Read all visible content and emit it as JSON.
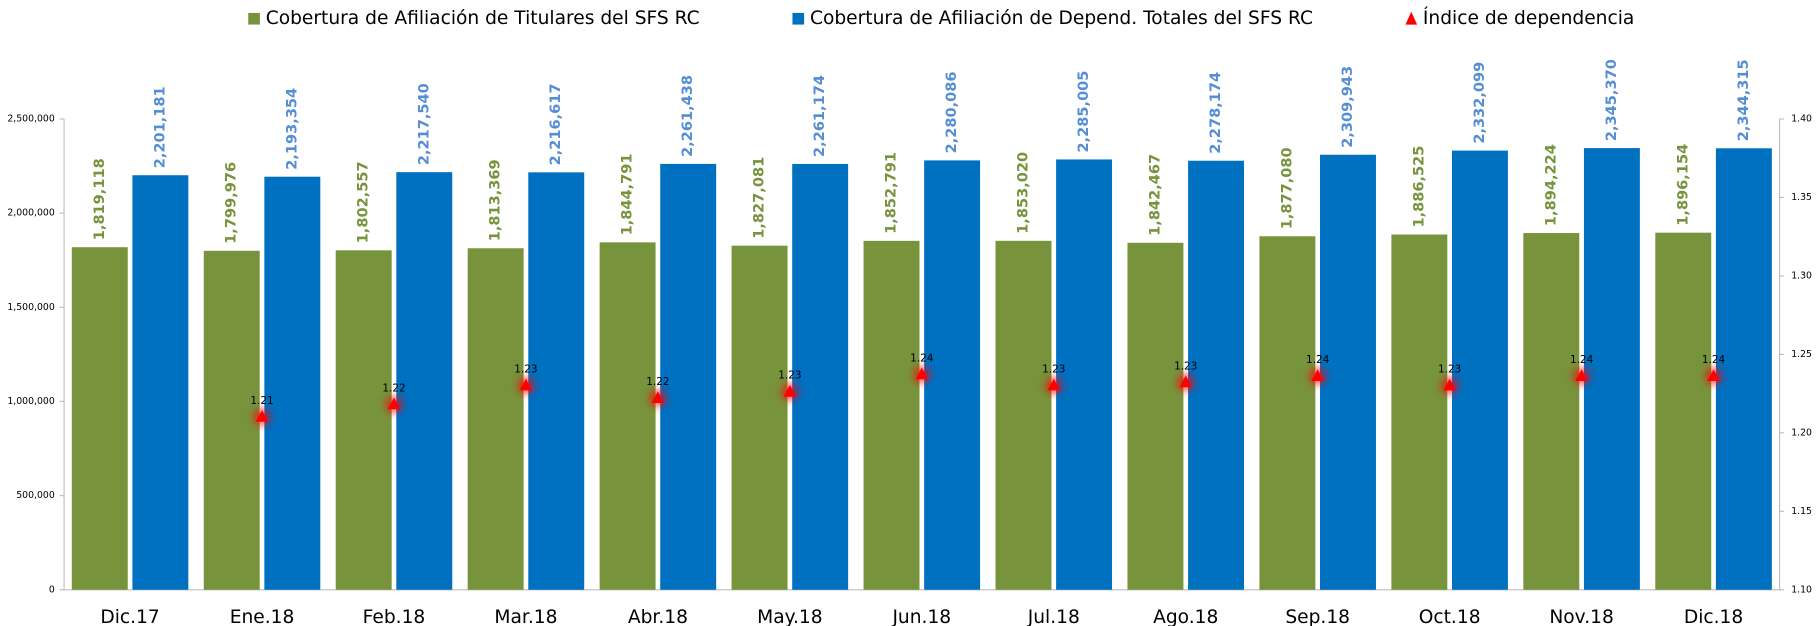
{
  "chart_data": {
    "type": "bar",
    "categories": [
      "Dic.17",
      "Ene.18",
      "Feb.18",
      "Mar.18",
      "Abr.18",
      "May.18",
      "Jun.18",
      "Jul.18",
      "Ago.18",
      "Sep.18",
      "Oct.18",
      "Nov.18",
      "Dic.18"
    ],
    "series": [
      {
        "name": "Cobertura de Afiliación de Titulares del SFS RC",
        "type": "bar",
        "color": "#77933c",
        "label_color": "#77933c",
        "values": [
          1819118,
          1799976,
          1802557,
          1813369,
          1844791,
          1827081,
          1852791,
          1853020,
          1842467,
          1877080,
          1886525,
          1894224,
          1896154
        ],
        "value_labels": [
          "1,819,118",
          "1,799,976",
          "1,802,557",
          "1,813,369",
          "1,844,791",
          "1,827,081",
          "1,852,791",
          "1,853,020",
          "1,842,467",
          "1,877,080",
          "1,886,525",
          "1,894,224",
          "1,896,154"
        ]
      },
      {
        "name": "Cobertura de Afiliación de Depend. Totales del SFS RC",
        "type": "bar",
        "color": "#0070c0",
        "label_color": "#558ed5",
        "values": [
          2201181,
          2193354,
          2217540,
          2216617,
          2261438,
          2261174,
          2280086,
          2285005,
          2278174,
          2309943,
          2332099,
          2345370,
          2344315
        ],
        "value_labels": [
          "2,201,181",
          "2,193,354",
          "2,217,540",
          "2,216,617",
          "2,261,438",
          "2,261,174",
          "2,280,086",
          "2,285,005",
          "2,278,174",
          "2,309,943",
          "2,332,099",
          "2,345,370",
          "2,344,315"
        ]
      },
      {
        "name": "Índice de dependencia",
        "type": "scatter",
        "axis": "y2",
        "color": "#ff0000",
        "label_color": "#000000",
        "values": [
          null,
          1.21,
          1.218,
          1.23,
          1.222,
          1.226,
          1.237,
          1.23,
          1.232,
          1.236,
          1.23,
          1.236,
          1.236
        ],
        "value_labels": [
          null,
          "1.21",
          "1.22",
          "1.23",
          "1.22",
          "1.23",
          "1.24",
          "1.23",
          "1.23",
          "1.24",
          "1.23",
          "1.24",
          "1.24"
        ]
      }
    ],
    "ylim": [
      0,
      2500000
    ],
    "yticks": [
      0,
      {
        "value": 500000,
        "label": "500,000"
      },
      {
        "value": 1000000,
        "label": "1,000,000"
      },
      {
        "value": 1500000,
        "label": "1,500,000"
      },
      {
        "value": 2000000,
        "label": "2,000,000"
      },
      {
        "value": 2500000,
        "label": "2,500,000"
      }
    ],
    "y2lim": [
      1.1,
      1.4
    ],
    "y2ticks": [
      {
        "value": 1.1,
        "label": "1.10"
      },
      1.15,
      {
        "value": 1.2,
        "label": "1.20"
      },
      1.25,
      {
        "value": 1.3,
        "label": "1.30"
      },
      1.35,
      {
        "value": 1.4,
        "label": "1.40"
      }
    ],
    "legend": "top"
  }
}
